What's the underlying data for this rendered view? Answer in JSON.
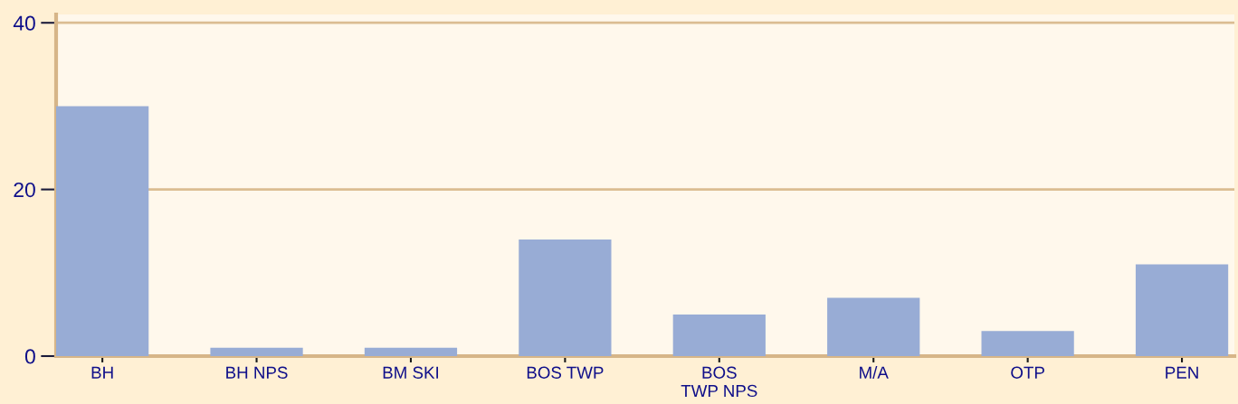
{
  "chart_data": {
    "type": "bar",
    "categories": [
      "BH",
      "BH NPS",
      "BM SKI",
      "BOS TWP",
      "BOS\nTWP NPS",
      "M/A",
      "OTP",
      "PEN"
    ],
    "values": [
      30,
      1,
      1,
      14,
      5,
      7,
      3,
      11
    ],
    "color": "#98acd5",
    "ylim": [
      0,
      41
    ],
    "yticks": [
      0,
      20,
      40
    ],
    "grid": "y"
  }
}
